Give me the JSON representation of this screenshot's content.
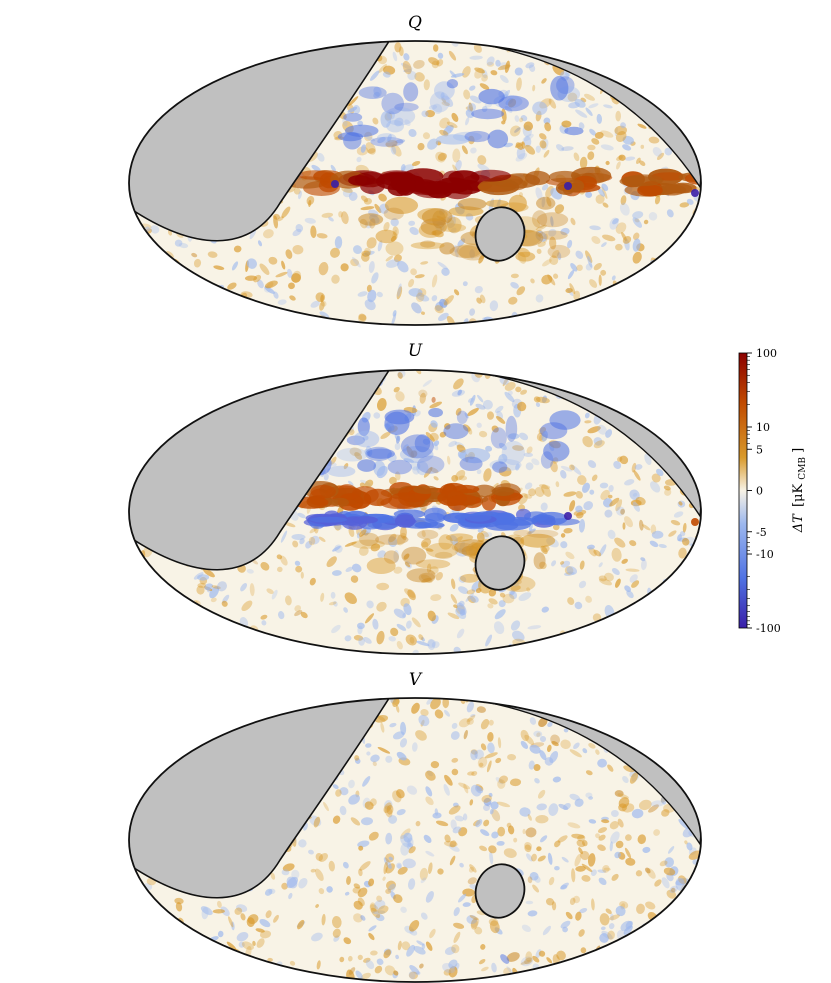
{
  "panels": [
    {
      "id": "Q",
      "title": "Q",
      "plane_strength": 1.0,
      "plane_pattern": "band"
    },
    {
      "id": "U",
      "title": "U",
      "plane_strength": 0.9,
      "plane_pattern": "split"
    },
    {
      "id": "V",
      "title": "V",
      "plane_strength": 0.0,
      "plane_pattern": "none"
    }
  ],
  "colorbar": {
    "ticks": [
      {
        "value": 100,
        "label": "100"
      },
      {
        "value": 10,
        "label": "10"
      },
      {
        "value": 5,
        "label": "5"
      },
      {
        "value": 0,
        "label": "0"
      },
      {
        "value": -5,
        "label": "-5"
      },
      {
        "value": -10,
        "label": "-10"
      },
      {
        "value": -100,
        "label": "-100"
      }
    ],
    "label_main": "ΔT",
    "label_unit": "[μK",
    "label_sub": "CMB",
    "label_close": "]",
    "range": [
      -100,
      100
    ],
    "scale": "symlog",
    "colors": {
      "max": "#8b0000",
      "high": "#c04a00",
      "mid_high": "#d99a2b",
      "zero": "#f8f3e6",
      "mid_low": "#9db8ee",
      "low": "#4f72e3",
      "min": "#3a1fa8"
    }
  },
  "mask_color": "#c0c0c0",
  "outline_color": "#111111"
}
